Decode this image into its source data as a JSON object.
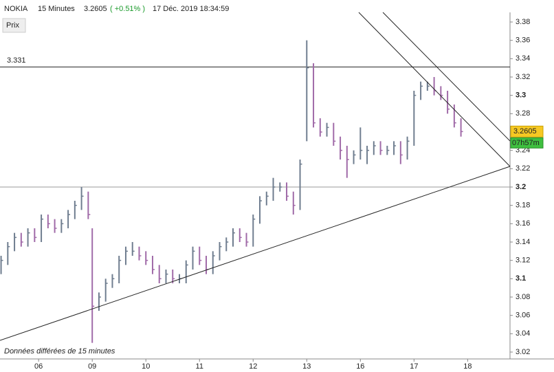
{
  "chart_data": {
    "type": "ohlc",
    "symbol": "NOKIA",
    "interval": "15 Minutes",
    "change": "( +0.51% )",
    "datetime": "17 Déc. 2019 18:34:59",
    "button": "Prix",
    "footnote": "Données différées de 15 minutes",
    "last": 3.2605,
    "countdown": "07h57m",
    "level": 3.331,
    "hlines": [
      3.2
    ],
    "up_color": "#6f7d8f",
    "down_color": "#a06aa8",
    "xlim": [
      -0.72,
      8.79
    ],
    "ylim": [
      3.0125,
      3.3905
    ],
    "xticks": [
      {
        "value": 0,
        "label": "06"
      },
      {
        "value": 1,
        "label": "09"
      },
      {
        "value": 2,
        "label": "10"
      },
      {
        "value": 3,
        "label": "11"
      },
      {
        "value": 4,
        "label": "12"
      },
      {
        "value": 5,
        "label": "13"
      },
      {
        "value": 6,
        "label": "16"
      },
      {
        "value": 7,
        "label": "17"
      },
      {
        "value": 8,
        "label": "18"
      }
    ],
    "yticks": [
      3.02,
      3.04,
      3.06,
      3.08,
      3.1,
      3.12,
      3.14,
      3.16,
      3.18,
      3.2,
      3.22,
      3.24,
      3.26,
      3.28,
      3.3,
      3.32,
      3.34,
      3.36,
      3.38
    ],
    "x": [
      -0.7,
      -0.575,
      -0.45,
      -0.325,
      -0.2,
      -0.075,
      0.05,
      0.175,
      0.3,
      0.425,
      0.55,
      0.675,
      0.8,
      0.925,
      1.0,
      1.125,
      1.25,
      1.375,
      1.5,
      1.625,
      1.75,
      1.875,
      2.0,
      2.125,
      2.25,
      2.375,
      2.5,
      2.625,
      2.75,
      2.875,
      3.0,
      3.125,
      3.25,
      3.375,
      3.5,
      3.625,
      3.75,
      3.875,
      4.0,
      4.125,
      4.25,
      4.375,
      4.5,
      4.625,
      4.75,
      4.875,
      5.0,
      5.125,
      5.25,
      5.375,
      5.5,
      5.625,
      5.75,
      5.875,
      6.0,
      6.125,
      6.25,
      6.375,
      6.5,
      6.625,
      6.75,
      6.875,
      7.0,
      7.125,
      7.25,
      7.375,
      7.5,
      7.625,
      7.75,
      7.875
    ],
    "high": [
      3.125,
      3.14,
      3.15,
      3.15,
      3.155,
      3.155,
      3.17,
      3.17,
      3.165,
      3.165,
      3.175,
      3.185,
      3.2,
      3.195,
      3.155,
      3.085,
      3.1,
      3.105,
      3.125,
      3.135,
      3.14,
      3.135,
      3.13,
      3.125,
      3.115,
      3.11,
      3.11,
      3.105,
      3.12,
      3.135,
      3.135,
      3.125,
      3.13,
      3.14,
      3.145,
      3.155,
      3.155,
      3.15,
      3.17,
      3.19,
      3.195,
      3.21,
      3.205,
      3.205,
      3.195,
      3.23,
      3.36,
      3.335,
      3.275,
      3.27,
      3.27,
      3.255,
      3.245,
      3.24,
      3.265,
      3.245,
      3.25,
      3.25,
      3.245,
      3.25,
      3.25,
      3.255,
      3.305,
      3.315,
      3.315,
      3.32,
      3.31,
      3.305,
      3.29,
      3.275
    ],
    "low": [
      3.105,
      3.115,
      3.13,
      3.135,
      3.135,
      3.14,
      3.14,
      3.155,
      3.15,
      3.15,
      3.155,
      3.165,
      3.175,
      3.165,
      3.03,
      3.065,
      3.075,
      3.09,
      3.095,
      3.115,
      3.125,
      3.12,
      3.115,
      3.105,
      3.095,
      3.095,
      3.095,
      3.095,
      3.095,
      3.11,
      3.115,
      3.105,
      3.105,
      3.12,
      3.13,
      3.135,
      3.14,
      3.135,
      3.135,
      3.16,
      3.18,
      3.185,
      3.195,
      3.185,
      3.17,
      3.175,
      3.25,
      3.265,
      3.255,
      3.255,
      3.245,
      3.23,
      3.21,
      3.225,
      3.23,
      3.225,
      3.235,
      3.235,
      3.235,
      3.235,
      3.225,
      3.23,
      3.245,
      3.295,
      3.305,
      3.3,
      3.295,
      3.28,
      3.265,
      3.255
    ],
    "close": [
      3.12,
      3.135,
      3.145,
      3.14,
      3.15,
      3.145,
      3.165,
      3.16,
      3.155,
      3.16,
      3.17,
      3.18,
      3.19,
      3.17,
      3.07,
      3.08,
      3.095,
      3.1,
      3.12,
      3.13,
      3.13,
      3.125,
      3.12,
      3.11,
      3.1,
      3.105,
      3.1,
      3.1,
      3.115,
      3.13,
      3.12,
      3.11,
      3.125,
      3.135,
      3.14,
      3.15,
      3.145,
      3.14,
      3.165,
      3.185,
      3.19,
      3.2,
      3.2,
      3.19,
      3.18,
      3.225,
      3.33,
      3.27,
      3.26,
      3.265,
      3.25,
      3.24,
      3.23,
      3.235,
      3.24,
      3.24,
      3.245,
      3.24,
      3.24,
      3.245,
      3.235,
      3.25,
      3.3,
      3.31,
      3.31,
      3.305,
      3.3,
      3.285,
      3.27,
      3.2605
    ],
    "trendlines": [
      {
        "x": [
          -0.72,
          8.79
        ],
        "y": [
          3.0327,
          3.2225
        ]
      },
      {
        "x": [
          5.97,
          8.79
        ],
        "y": [
          3.3905,
          3.2225
        ]
      },
      {
        "x": [
          6.42,
          8.79
        ],
        "y": [
          3.3905,
          3.2502
        ]
      }
    ]
  }
}
